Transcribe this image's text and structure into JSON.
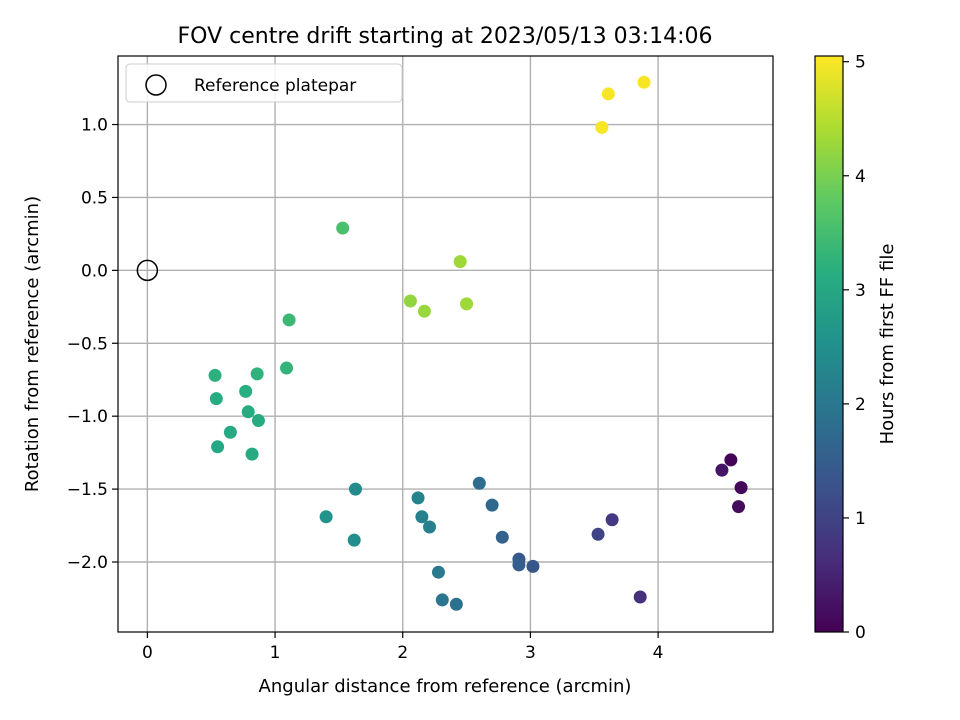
{
  "chart_data": {
    "type": "scatter",
    "title": "FOV centre drift starting at 2023/05/13 03:14:06",
    "xlabel": "Angular distance from reference (arcmin)",
    "ylabel": "Rotation from reference (arcmin)",
    "xlim": [
      -0.23,
      4.9
    ],
    "ylim": [
      -2.48,
      1.47
    ],
    "xticks": [
      0,
      1,
      2,
      3,
      4
    ],
    "xtick_labels": [
      "0",
      "1",
      "2",
      "3",
      "4"
    ],
    "yticks": [
      1.0,
      0.5,
      0.0,
      -0.5,
      -1.0,
      -1.5,
      -2.0
    ],
    "ytick_labels": [
      "1.0",
      "0.5",
      "0.0",
      "−0.5",
      "−1.0",
      "−1.5",
      "−2.0"
    ],
    "grid": true,
    "legend": {
      "position": "top-left",
      "entries": [
        "Reference platepar"
      ]
    },
    "reference_point": {
      "x": 0,
      "y": 0,
      "label": "Reference platepar"
    },
    "colorbar": {
      "label": "Hours from first FF file",
      "colormap": "viridis",
      "range": [
        0,
        5.05
      ],
      "ticks": [
        0,
        1,
        2,
        3,
        4,
        5
      ],
      "tick_labels": [
        "0",
        "1",
        "2",
        "3",
        "4",
        "5"
      ]
    },
    "points": [
      {
        "x": 4.57,
        "y": -1.3,
        "hours": 0.05
      },
      {
        "x": 4.65,
        "y": -1.49,
        "hours": 0.1
      },
      {
        "x": 4.63,
        "y": -1.62,
        "hours": 0.15
      },
      {
        "x": 4.5,
        "y": -1.37,
        "hours": 0.3
      },
      {
        "x": 3.86,
        "y": -2.24,
        "hours": 0.7
      },
      {
        "x": 3.64,
        "y": -1.71,
        "hours": 0.85
      },
      {
        "x": 3.53,
        "y": -1.81,
        "hours": 1.0
      },
      {
        "x": 3.02,
        "y": -2.03,
        "hours": 1.35
      },
      {
        "x": 2.91,
        "y": -1.98,
        "hours": 1.4
      },
      {
        "x": 2.91,
        "y": -2.02,
        "hours": 1.5
      },
      {
        "x": 2.78,
        "y": -1.83,
        "hours": 1.6
      },
      {
        "x": 2.7,
        "y": -1.61,
        "hours": 1.7
      },
      {
        "x": 2.6,
        "y": -1.46,
        "hours": 1.8
      },
      {
        "x": 2.42,
        "y": -2.29,
        "hours": 1.85
      },
      {
        "x": 2.31,
        "y": -2.26,
        "hours": 1.95
      },
      {
        "x": 2.28,
        "y": -2.07,
        "hours": 2.05
      },
      {
        "x": 2.21,
        "y": -1.76,
        "hours": 2.15
      },
      {
        "x": 2.15,
        "y": -1.69,
        "hours": 2.2
      },
      {
        "x": 2.12,
        "y": -1.56,
        "hours": 2.25
      },
      {
        "x": 1.63,
        "y": -1.5,
        "hours": 2.4
      },
      {
        "x": 1.62,
        "y": -1.85,
        "hours": 2.5
      },
      {
        "x": 1.4,
        "y": -1.69,
        "hours": 2.6
      },
      {
        "x": 0.55,
        "y": -1.21,
        "hours": 3.0
      },
      {
        "x": 0.65,
        "y": -1.11,
        "hours": 3.05
      },
      {
        "x": 0.82,
        "y": -1.26,
        "hours": 3.05
      },
      {
        "x": 0.87,
        "y": -1.03,
        "hours": 3.1
      },
      {
        "x": 0.79,
        "y": -0.97,
        "hours": 3.1
      },
      {
        "x": 0.54,
        "y": -0.88,
        "hours": 3.1
      },
      {
        "x": 0.77,
        "y": -0.83,
        "hours": 3.15
      },
      {
        "x": 0.53,
        "y": -0.72,
        "hours": 3.2
      },
      {
        "x": 0.86,
        "y": -0.71,
        "hours": 3.25
      },
      {
        "x": 1.09,
        "y": -0.67,
        "hours": 3.3
      },
      {
        "x": 1.11,
        "y": -0.34,
        "hours": 3.4
      },
      {
        "x": 1.53,
        "y": 0.29,
        "hours": 3.55
      },
      {
        "x": 2.06,
        "y": -0.21,
        "hours": 4.2
      },
      {
        "x": 2.17,
        "y": -0.28,
        "hours": 4.25
      },
      {
        "x": 2.45,
        "y": 0.06,
        "hours": 4.3
      },
      {
        "x": 2.5,
        "y": -0.23,
        "hours": 4.3
      },
      {
        "x": 3.56,
        "y": 0.98,
        "hours": 5.0
      },
      {
        "x": 3.61,
        "y": 1.21,
        "hours": 5.0
      },
      {
        "x": 3.89,
        "y": 1.29,
        "hours": 5.0
      }
    ]
  }
}
